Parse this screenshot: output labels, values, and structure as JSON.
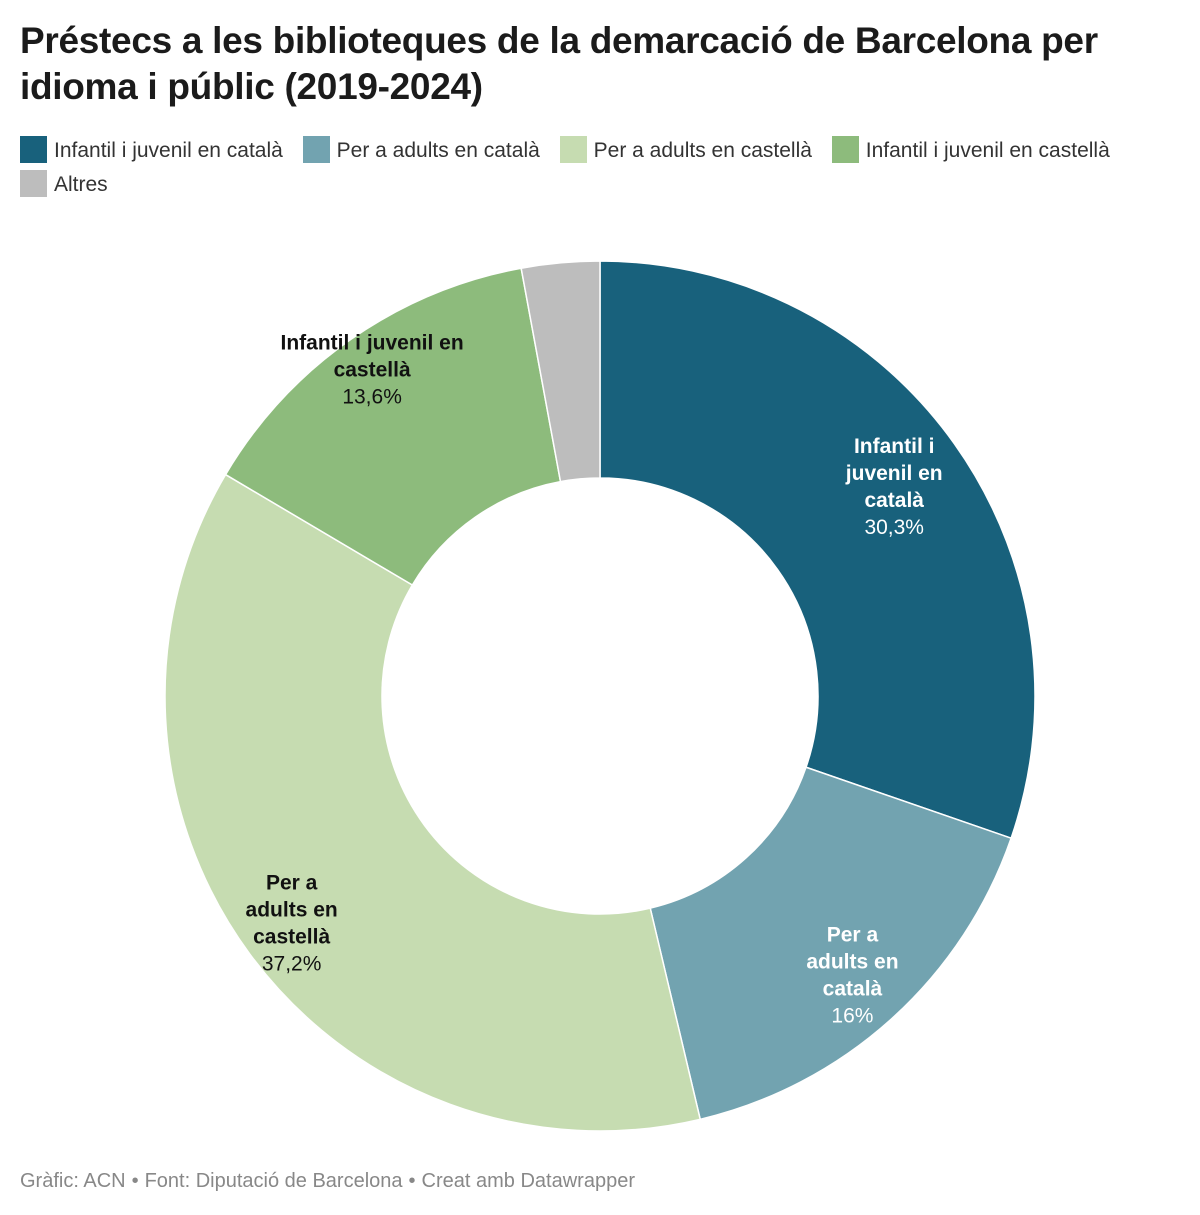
{
  "chart_data": {
    "type": "pie",
    "title": "Préstecs a les biblioteques de la demarcació de Barcelona per idioma i públic (2019-2024)",
    "donut": true,
    "legend_position": "top",
    "slices": [
      {
        "label": "Infantil i juvenil en català",
        "label_lines": [
          "Infantil i",
          "juvenil en",
          "català"
        ],
        "value": 30.3,
        "value_label": "30,3%",
        "color": "#18617c",
        "text_color": "#ffffff",
        "show_label": true
      },
      {
        "label": "Per a adults en català",
        "label_lines": [
          "Per a",
          "adults en",
          "català"
        ],
        "value": 16,
        "value_label": "16%",
        "color": "#72a3b0",
        "text_color": "#ffffff",
        "show_label": true
      },
      {
        "label": "Per a adults en castellà",
        "label_lines": [
          "Per a",
          "adults en",
          "castellà"
        ],
        "value": 37.2,
        "value_label": "37,2%",
        "color": "#c6dcb1",
        "text_color": "#111111",
        "show_label": true
      },
      {
        "label": "Infantil i juvenil en castellà",
        "label_lines": [
          "Infantil i juvenil en",
          "castellà"
        ],
        "value": 13.6,
        "value_label": "13,6%",
        "color": "#8dbb7c",
        "text_color": "#111111",
        "show_label": true
      },
      {
        "label": "Altres",
        "label_lines": [],
        "value": 2.9,
        "value_label": "",
        "color": "#bdbdbd",
        "text_color": "#111111",
        "show_label": false
      }
    ]
  },
  "footer": {
    "credit": "Gràfic: ACN",
    "source": "Font: Diputació de Barcelona",
    "tool": "Creat amb Datawrapper",
    "separator": "•"
  }
}
